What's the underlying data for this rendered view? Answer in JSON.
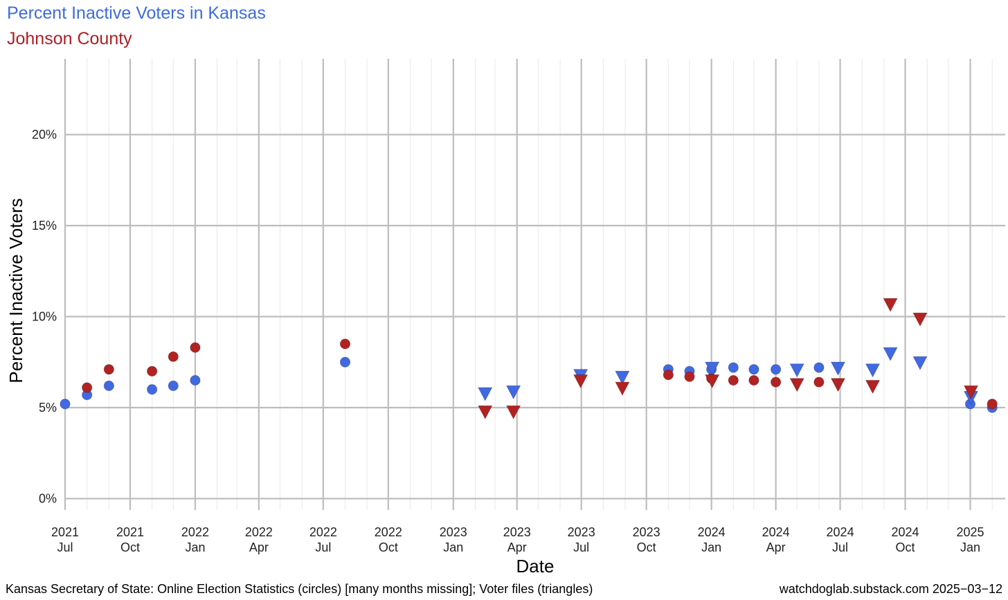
{
  "title": "Percent Inactive Voters in Kansas",
  "subtitle": "Johnson County",
  "caption_left": "Kansas Secretary of State: Online Election Statistics (circles) [many months missing]; Voter files (triangles)",
  "caption_right": "watchdoglab.substack.com 2025−03−12",
  "chart_data": {
    "type": "scatter",
    "xlabel": "Date",
    "ylabel": "Percent Inactive Voters",
    "xlim": [
      "2021-07-01",
      "2025-03-20"
    ],
    "ylim": [
      -0.6,
      24.2
    ],
    "y_ticks": [
      {
        "value": 0,
        "label": "0%"
      },
      {
        "value": 5,
        "label": "5%"
      },
      {
        "value": 10,
        "label": "10%"
      },
      {
        "value": 15,
        "label": "15%"
      },
      {
        "value": 20,
        "label": "20%"
      }
    ],
    "x_ticks": [
      {
        "date": "2021-07-01",
        "year": "2021",
        "month": "Jul"
      },
      {
        "date": "2021-10-01",
        "year": "2021",
        "month": "Oct"
      },
      {
        "date": "2022-01-01",
        "year": "2022",
        "month": "Jan"
      },
      {
        "date": "2022-04-01",
        "year": "2022",
        "month": "Apr"
      },
      {
        "date": "2022-07-01",
        "year": "2022",
        "month": "Jul"
      },
      {
        "date": "2022-10-01",
        "year": "2022",
        "month": "Oct"
      },
      {
        "date": "2023-01-01",
        "year": "2023",
        "month": "Jan"
      },
      {
        "date": "2023-04-01",
        "year": "2023",
        "month": "Apr"
      },
      {
        "date": "2023-07-01",
        "year": "2023",
        "month": "Jul"
      },
      {
        "date": "2023-10-01",
        "year": "2023",
        "month": "Oct"
      },
      {
        "date": "2024-01-01",
        "year": "2024",
        "month": "Jan"
      },
      {
        "date": "2024-04-01",
        "year": "2024",
        "month": "Apr"
      },
      {
        "date": "2024-07-01",
        "year": "2024",
        "month": "Jul"
      },
      {
        "date": "2024-10-01",
        "year": "2024",
        "month": "Oct"
      },
      {
        "date": "2025-01-01",
        "year": "2025",
        "month": "Jan"
      }
    ],
    "grid": true,
    "minor_grid": "monthly",
    "legend": "none",
    "series": [
      {
        "color": "#4169E1",
        "shape": "circle",
        "points": [
          {
            "x": "2021-07-01",
            "y": 5.2
          },
          {
            "x": "2021-08-01",
            "y": 5.7
          },
          {
            "x": "2021-09-01",
            "y": 6.2
          },
          {
            "x": "2021-11-01",
            "y": 6.0
          },
          {
            "x": "2021-12-01",
            "y": 6.2
          },
          {
            "x": "2022-01-01",
            "y": 6.5
          },
          {
            "x": "2022-08-01",
            "y": 7.5
          },
          {
            "x": "2023-11-01",
            "y": 7.1
          },
          {
            "x": "2023-12-01",
            "y": 7.0
          },
          {
            "x": "2024-01-01",
            "y": 7.1
          },
          {
            "x": "2024-02-01",
            "y": 7.2
          },
          {
            "x": "2024-03-01",
            "y": 7.1
          },
          {
            "x": "2024-04-01",
            "y": 7.1
          },
          {
            "x": "2024-06-01",
            "y": 7.2
          },
          {
            "x": "2025-01-01",
            "y": 5.2
          },
          {
            "x": "2025-02-01",
            "y": 5.0
          }
        ]
      },
      {
        "color": "#B22222",
        "shape": "circle",
        "points": [
          {
            "x": "2021-08-01",
            "y": 6.1
          },
          {
            "x": "2021-09-01",
            "y": 7.1
          },
          {
            "x": "2021-11-01",
            "y": 7.0
          },
          {
            "x": "2021-12-01",
            "y": 7.8
          },
          {
            "x": "2022-01-01",
            "y": 8.3
          },
          {
            "x": "2022-08-01",
            "y": 8.5
          },
          {
            "x": "2023-11-01",
            "y": 6.8
          },
          {
            "x": "2023-12-01",
            "y": 6.7
          },
          {
            "x": "2024-01-01",
            "y": 6.6
          },
          {
            "x": "2024-02-01",
            "y": 6.5
          },
          {
            "x": "2024-03-01",
            "y": 6.5
          },
          {
            "x": "2024-04-01",
            "y": 6.4
          },
          {
            "x": "2024-06-01",
            "y": 6.4
          },
          {
            "x": "2025-02-01",
            "y": 5.2
          }
        ]
      },
      {
        "color": "#4169E1",
        "shape": "triangle-down",
        "points": [
          {
            "x": "2023-02-15",
            "y": 5.8
          },
          {
            "x": "2023-03-27",
            "y": 5.9
          },
          {
            "x": "2023-06-30",
            "y": 6.8
          },
          {
            "x": "2023-08-28",
            "y": 6.7
          },
          {
            "x": "2024-01-02",
            "y": 7.2
          },
          {
            "x": "2024-05-01",
            "y": 7.1
          },
          {
            "x": "2024-06-28",
            "y": 7.2
          },
          {
            "x": "2024-08-16",
            "y": 7.1
          },
          {
            "x": "2024-09-10",
            "y": 8.0
          },
          {
            "x": "2024-10-22",
            "y": 7.5
          },
          {
            "x": "2025-01-02",
            "y": 5.6
          }
        ]
      },
      {
        "color": "#B22222",
        "shape": "triangle-down",
        "points": [
          {
            "x": "2023-02-15",
            "y": 4.8
          },
          {
            "x": "2023-03-27",
            "y": 4.8
          },
          {
            "x": "2023-06-30",
            "y": 6.5
          },
          {
            "x": "2023-08-28",
            "y": 6.1
          },
          {
            "x": "2024-01-02",
            "y": 6.5
          },
          {
            "x": "2024-05-01",
            "y": 6.3
          },
          {
            "x": "2024-06-28",
            "y": 6.3
          },
          {
            "x": "2024-08-16",
            "y": 6.2
          },
          {
            "x": "2024-09-10",
            "y": 10.7
          },
          {
            "x": "2024-10-22",
            "y": 9.9
          },
          {
            "x": "2025-01-02",
            "y": 5.9
          }
        ]
      }
    ]
  }
}
